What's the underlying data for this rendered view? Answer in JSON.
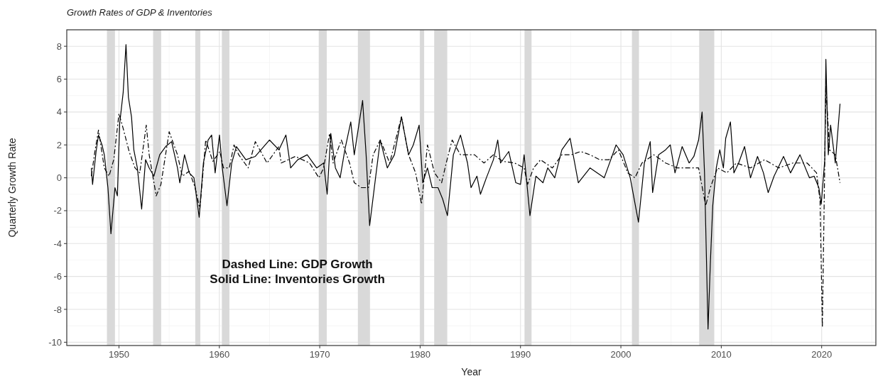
{
  "chart_data": {
    "type": "line",
    "title": "Growth Rates of GDP & Inventories",
    "xlabel": "Year",
    "ylabel": "Quarterly Growth Rate",
    "xlim": [
      1944.8,
      2025.4
    ],
    "ylim": [
      -10.2,
      9.0
    ],
    "xticks": [
      1950,
      1960,
      1970,
      1980,
      1990,
      2000,
      2010,
      2020
    ],
    "yticks": [
      -10,
      -8,
      -6,
      -4,
      -2,
      0,
      2,
      4,
      6,
      8
    ],
    "grid": true,
    "marker": "none",
    "annotations": [
      "Dashed Line: GDP Growth",
      "Solid Line: Inventories Growth"
    ],
    "bands": [
      {
        "axis": "x",
        "from": 1948.8,
        "to": 1949.6,
        "color": "#d9d9d9"
      },
      {
        "axis": "x",
        "from": 1953.4,
        "to": 1954.2,
        "color": "#d9d9d9"
      },
      {
        "axis": "x",
        "from": 1957.6,
        "to": 1958.1,
        "color": "#d9d9d9"
      },
      {
        "axis": "x",
        "from": 1960.25,
        "to": 1961.0,
        "color": "#d9d9d9"
      },
      {
        "axis": "x",
        "from": 1969.9,
        "to": 1970.7,
        "color": "#d9d9d9"
      },
      {
        "axis": "x",
        "from": 1973.8,
        "to": 1975.0,
        "color": "#d9d9d9"
      },
      {
        "axis": "x",
        "from": 1980.0,
        "to": 1980.4,
        "color": "#d9d9d9"
      },
      {
        "axis": "x",
        "from": 1981.4,
        "to": 1982.7,
        "color": "#d9d9d9"
      },
      {
        "axis": "x",
        "from": 1990.4,
        "to": 1991.1,
        "color": "#d9d9d9"
      },
      {
        "axis": "x",
        "from": 2001.1,
        "to": 2001.8,
        "color": "#d9d9d9"
      },
      {
        "axis": "x",
        "from": 2007.8,
        "to": 2009.3,
        "color": "#d9d9d9"
      }
    ],
    "series": [
      {
        "color": "#000000",
        "line_style": "dashed",
        "x": [
          1947.25,
          1947.6,
          1947.96,
          1948.54,
          1949.01,
          1949.48,
          1950.0,
          1950.42,
          1951.01,
          1951.6,
          1952.07,
          1952.72,
          1953.01,
          1953.71,
          1954.18,
          1955.0,
          1955.83,
          1956.3,
          1957.0,
          1957.59,
          1958.06,
          1958.64,
          1959.35,
          1960.05,
          1960.41,
          1960.99,
          1961.46,
          1961.93,
          1962.87,
          1963.58,
          1964.75,
          1965.93,
          1966.16,
          1967.57,
          1968.98,
          1969.92,
          1970.39,
          1970.98,
          1971.33,
          1972.15,
          1972.97,
          1973.44,
          1974.15,
          1974.85,
          1975.32,
          1976.03,
          1976.97,
          1978.14,
          1978.85,
          1979.55,
          1980.14,
          1980.73,
          1981.43,
          1982.14,
          1982.6,
          1983.19,
          1984.02,
          1985.42,
          1986.36,
          1987.3,
          1988.24,
          1989.42,
          1990.36,
          1990.71,
          1991.3,
          1992.0,
          1993.18,
          1994.12,
          1995.06,
          1995.99,
          1996.93,
          1997.87,
          1998.81,
          1999.75,
          2000.69,
          2001.4,
          2002.1,
          2003.28,
          2004.45,
          2005.63,
          2006.8,
          2007.74,
          2008.45,
          2008.91,
          2009.62,
          2010.56,
          2011.5,
          2012.91,
          2014.32,
          2015.73,
          2017.14,
          2018.55,
          2019.49,
          2019.84,
          2020.07,
          2020.42,
          2020.78,
          2021.36,
          2021.83
        ],
        "values": [
          0.1,
          1.6,
          2.9,
          0.6,
          0.1,
          1.1,
          3.9,
          3.0,
          1.6,
          0.6,
          0.3,
          3.2,
          1.4,
          -1.1,
          -0.4,
          2.8,
          1.4,
          0.1,
          0.4,
          -0.6,
          -1.9,
          2.3,
          1.0,
          1.6,
          0.6,
          0.6,
          2.0,
          1.4,
          0.6,
          2.2,
          0.9,
          1.9,
          0.9,
          1.3,
          0.9,
          0.0,
          0.6,
          2.7,
          0.9,
          2.3,
          0.9,
          -0.3,
          -0.6,
          -0.6,
          1.4,
          2.3,
          0.9,
          3.7,
          1.4,
          0.3,
          -1.6,
          2.0,
          0.3,
          -0.3,
          0.9,
          2.3,
          1.4,
          1.4,
          0.9,
          1.4,
          1.0,
          0.9,
          0.6,
          -0.4,
          0.6,
          1.1,
          0.6,
          1.4,
          1.4,
          1.6,
          1.4,
          1.1,
          1.1,
          1.7,
          0.3,
          0.0,
          0.9,
          1.4,
          0.9,
          0.6,
          0.6,
          0.6,
          -1.7,
          -0.6,
          0.6,
          0.3,
          0.9,
          0.6,
          1.1,
          0.6,
          0.9,
          0.9,
          0.3,
          -1.4,
          -9.1,
          5.6,
          1.7,
          1.4,
          -0.3
        ]
      },
      {
        "color": "#000000",
        "line_style": "solid",
        "x": [
          1947.25,
          1947.37,
          1947.72,
          1947.96,
          1948.31,
          1948.54,
          1948.9,
          1949.2,
          1949.6,
          1949.84,
          1950.07,
          1950.42,
          1950.7,
          1950.94,
          1951.25,
          1951.48,
          1951.83,
          1952.26,
          1952.65,
          1953.01,
          1953.48,
          1954.06,
          1954.65,
          1955.24,
          1955.83,
          1956.06,
          1956.53,
          1957.0,
          1957.47,
          1957.99,
          1958.41,
          1958.88,
          1959.23,
          1959.58,
          1960.01,
          1960.29,
          1960.76,
          1961.23,
          1961.7,
          1962.64,
          1963.58,
          1964.99,
          1965.93,
          1966.63,
          1967.1,
          1967.81,
          1968.75,
          1969.69,
          1970.39,
          1970.74,
          1971.1,
          1971.56,
          1972.03,
          1972.5,
          1973.09,
          1973.44,
          1974.27,
          1974.62,
          1974.97,
          1975.56,
          1976.03,
          1976.73,
          1977.44,
          1978.14,
          1978.85,
          1979.32,
          1979.9,
          1980.26,
          1980.73,
          1981.2,
          1981.78,
          1982.25,
          1982.72,
          1983.31,
          1984.02,
          1984.72,
          1985.07,
          1985.66,
          1986.01,
          1986.6,
          1987.3,
          1987.73,
          1988.01,
          1988.83,
          1989.53,
          1990.0,
          1990.36,
          1990.94,
          1991.53,
          1992.24,
          1992.71,
          1993.41,
          1994.12,
          1994.94,
          1995.76,
          1996.93,
          1998.34,
          1999.52,
          2000.22,
          2000.93,
          2001.75,
          2002.34,
          2002.92,
          2003.16,
          2003.75,
          2004.45,
          2004.92,
          2005.39,
          2006.1,
          2006.8,
          2007.27,
          2007.74,
          2008.09,
          2008.33,
          2008.68,
          2008.91,
          2009.15,
          2009.5,
          2009.85,
          2010.21,
          2010.44,
          2010.91,
          2011.26,
          2011.73,
          2012.32,
          2012.91,
          2013.61,
          2014.2,
          2014.67,
          2015.26,
          2016.2,
          2016.9,
          2017.84,
          2018.78,
          2019.25,
          2019.72,
          2019.96,
          2020.31,
          2020.42,
          2020.66,
          2020.89,
          2021.36,
          2021.83
        ],
        "values": [
          0.6,
          -0.4,
          1.6,
          2.6,
          2.0,
          1.4,
          -0.6,
          -3.4,
          -0.6,
          -1.1,
          3.3,
          5.2,
          8.1,
          4.9,
          3.7,
          1.7,
          0.6,
          -1.9,
          1.1,
          0.6,
          0.1,
          1.4,
          1.9,
          2.2,
          0.6,
          -0.3,
          1.4,
          0.3,
          0.0,
          -2.4,
          0.9,
          2.3,
          2.6,
          0.3,
          2.6,
          0.6,
          -1.7,
          0.9,
          1.9,
          1.1,
          1.3,
          2.3,
          1.7,
          2.6,
          0.6,
          1.1,
          1.4,
          0.6,
          0.9,
          -1.0,
          2.7,
          0.6,
          0.0,
          1.7,
          3.4,
          1.4,
          4.7,
          1.4,
          -2.9,
          0.0,
          2.3,
          0.6,
          1.4,
          3.7,
          1.4,
          2.0,
          3.2,
          -0.3,
          0.6,
          -0.6,
          -0.6,
          -1.3,
          -2.3,
          1.4,
          2.6,
          0.9,
          -0.6,
          0.1,
          -1.0,
          0.0,
          1.1,
          2.3,
          0.9,
          1.6,
          -0.3,
          -0.4,
          1.4,
          -2.3,
          0.1,
          -0.3,
          0.6,
          0.0,
          1.7,
          2.4,
          -0.3,
          0.6,
          0.0,
          2.0,
          1.4,
          0.0,
          -2.7,
          0.9,
          2.2,
          -0.9,
          1.4,
          1.7,
          2.0,
          0.3,
          1.9,
          0.9,
          1.3,
          2.3,
          4.0,
          0.3,
          -9.2,
          -5.2,
          -1.7,
          0.6,
          1.7,
          0.6,
          2.4,
          3.4,
          0.3,
          0.9,
          1.9,
          0.0,
          1.3,
          0.3,
          -0.9,
          0.1,
          1.3,
          0.3,
          1.4,
          0.0,
          0.1,
          -0.6,
          -1.6,
          1.1,
          7.2,
          1.4,
          3.2,
          0.9,
          4.5
        ]
      }
    ]
  }
}
